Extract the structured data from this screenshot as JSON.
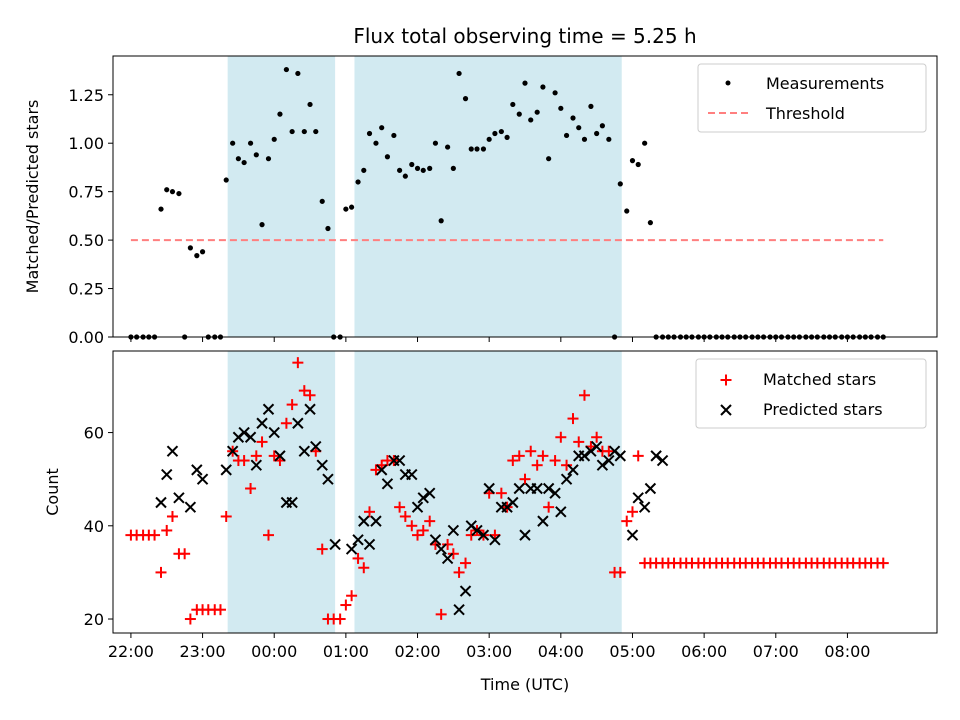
{
  "colors": {
    "shade": "#add8e6",
    "measurement": "#000000",
    "threshold": "#ff7f7f",
    "matched": "#ff0000",
    "predicted": "#000000",
    "axes": "#000000"
  },
  "chart_data": [
    {
      "type": "scatter",
      "title": "Flux total observing time = 5.25 h",
      "xlabel": "",
      "ylabel": "Matched/Predicted stars",
      "xlim": [
        21.75,
        33.25
      ],
      "ylim": [
        0,
        1.45
      ],
      "yticks": [
        0,
        0.25,
        0.5,
        0.75,
        1.0,
        1.25
      ],
      "ytick_labels": [
        "0.00",
        "0.25",
        "0.50",
        "0.75",
        "1.00",
        "1.25"
      ],
      "xticks": [
        22,
        23,
        24,
        25,
        26,
        27,
        28,
        29,
        30,
        31,
        32
      ],
      "xtick_labels_visible": false,
      "shaded_regions": [
        [
          23.35,
          24.85
        ],
        [
          25.12,
          28.85
        ]
      ],
      "legend": {
        "position": "upper right",
        "entries": [
          "Measurements",
          "Threshold"
        ]
      },
      "series": [
        {
          "name": "Threshold",
          "style": "dashed-line",
          "x": [
            22.0,
            32.5
          ],
          "y": [
            0.5,
            0.5
          ]
        },
        {
          "name": "Measurements",
          "style": "dot",
          "x": [
            22.0,
            22.08,
            22.17,
            22.25,
            22.33,
            22.42,
            22.5,
            22.58,
            22.67,
            22.75,
            22.83,
            22.92,
            23.0,
            23.08,
            23.17,
            23.25,
            23.33,
            23.42,
            23.5,
            23.58,
            23.67,
            23.75,
            23.83,
            23.92,
            24.0,
            24.08,
            24.17,
            24.25,
            24.33,
            24.42,
            24.5,
            24.58,
            24.67,
            24.75,
            24.83,
            24.92,
            25.0,
            25.08,
            25.17,
            25.25,
            25.33,
            25.42,
            25.5,
            25.58,
            25.67,
            25.75,
            25.83,
            25.92,
            26.0,
            26.08,
            26.17,
            26.25,
            26.33,
            26.42,
            26.5,
            26.58,
            26.67,
            26.75,
            26.83,
            26.92,
            27.0,
            27.08,
            27.17,
            27.25,
            27.33,
            27.42,
            27.5,
            27.58,
            27.67,
            27.75,
            27.83,
            27.92,
            28.0,
            28.08,
            28.17,
            28.25,
            28.33,
            28.42,
            28.5,
            28.58,
            28.67,
            28.75,
            28.83,
            28.92,
            29.0,
            29.08,
            29.17,
            29.25,
            29.33,
            29.42,
            29.5,
            29.58,
            29.67,
            29.75,
            29.83,
            29.92,
            30.0,
            30.08,
            30.17,
            30.25,
            30.33,
            30.42,
            30.5,
            30.58,
            30.67,
            30.75,
            30.83,
            30.92,
            31.0,
            31.08,
            31.17,
            31.25,
            31.33,
            31.42,
            31.5,
            31.58,
            31.67,
            31.75,
            31.83,
            31.92,
            32.0,
            32.08,
            32.17,
            32.25,
            32.33,
            32.42,
            32.5
          ],
          "y": [
            0.0,
            0.0,
            0.0,
            0.0,
            0.0,
            0.66,
            0.76,
            0.75,
            0.74,
            0.0,
            0.46,
            0.42,
            0.44,
            0.0,
            0.0,
            0.0,
            0.81,
            1.0,
            0.92,
            0.9,
            1.0,
            0.94,
            0.58,
            0.92,
            1.02,
            1.15,
            1.38,
            1.06,
            1.36,
            1.06,
            1.2,
            1.06,
            0.7,
            0.56,
            0.0,
            0.0,
            0.66,
            0.67,
            0.8,
            0.86,
            1.05,
            1.0,
            1.08,
            0.93,
            1.04,
            0.86,
            0.83,
            0.89,
            0.87,
            0.86,
            0.87,
            1.0,
            0.6,
            0.98,
            0.87,
            1.36,
            1.23,
            0.97,
            0.97,
            0.97,
            1.02,
            1.05,
            1.06,
            1.03,
            1.2,
            1.15,
            1.31,
            1.12,
            1.16,
            1.29,
            0.92,
            1.26,
            1.18,
            1.04,
            1.13,
            1.08,
            1.02,
            1.19,
            1.05,
            1.09,
            1.02,
            0.0,
            0.79,
            0.65,
            0.91,
            0.89,
            1.0,
            0.59,
            0.0,
            0.0,
            0.0,
            0.0,
            0.0,
            0.0,
            0.0,
            0.0,
            0.0,
            0.0,
            0.0,
            0.0,
            0.0,
            0.0,
            0.0,
            0.0,
            0.0,
            0.0,
            0.0,
            0.0,
            0.0,
            0.0,
            0.0,
            0.0,
            0.0,
            0.0,
            0.0,
            0.0,
            0.0,
            0.0,
            0.0,
            0.0,
            0.0,
            0.0,
            0.0,
            0.0,
            0.0,
            0.0,
            0.0
          ]
        }
      ]
    },
    {
      "type": "scatter",
      "title": "",
      "xlabel": "Time (UTC)",
      "ylabel": "Count",
      "xlim": [
        21.75,
        33.25
      ],
      "ylim": [
        17,
        77.5
      ],
      "yticks": [
        20,
        40,
        60
      ],
      "ytick_labels": [
        "20",
        "40",
        "60"
      ],
      "xticks": [
        22,
        23,
        24,
        25,
        26,
        27,
        28,
        29,
        30,
        31,
        32
      ],
      "xtick_labels": [
        "22:00",
        "23:00",
        "00:00",
        "01:00",
        "02:00",
        "03:00",
        "04:00",
        "05:00",
        "06:00",
        "07:00",
        "08:00"
      ],
      "shaded_regions": [
        [
          23.35,
          24.85
        ],
        [
          25.12,
          28.85
        ]
      ],
      "legend": {
        "position": "upper right",
        "entries": [
          "Matched stars",
          "Predicted stars"
        ]
      },
      "series": [
        {
          "name": "Matched stars",
          "marker": "plus",
          "x": [
            22.0,
            22.08,
            22.17,
            22.25,
            22.33,
            22.42,
            22.5,
            22.58,
            22.67,
            22.75,
            22.83,
            22.92,
            23.0,
            23.08,
            23.17,
            23.25,
            23.33,
            23.42,
            23.5,
            23.58,
            23.67,
            23.75,
            23.83,
            23.92,
            24.0,
            24.08,
            24.17,
            24.25,
            24.33,
            24.42,
            24.5,
            24.58,
            24.67,
            24.75,
            24.83,
            24.92,
            25.0,
            25.08,
            25.17,
            25.25,
            25.33,
            25.42,
            25.5,
            25.58,
            25.67,
            25.75,
            25.83,
            25.92,
            26.0,
            26.08,
            26.17,
            26.25,
            26.33,
            26.42,
            26.5,
            26.58,
            26.67,
            26.75,
            26.83,
            26.92,
            27.0,
            27.08,
            27.17,
            27.25,
            27.33,
            27.42,
            27.5,
            27.58,
            27.67,
            27.75,
            27.83,
            27.92,
            28.0,
            28.08,
            28.17,
            28.25,
            28.33,
            28.42,
            28.5,
            28.58,
            28.67,
            28.75,
            28.83,
            28.92,
            29.0,
            29.08,
            29.17,
            29.25,
            29.33,
            29.42,
            29.5,
            29.58,
            29.67,
            29.75,
            29.83,
            29.92,
            30.0,
            30.08,
            30.17,
            30.25,
            30.33,
            30.42,
            30.5,
            30.58,
            30.67,
            30.75,
            30.83,
            30.92,
            31.0,
            31.08,
            31.17,
            31.25,
            31.33,
            31.42,
            31.5,
            31.58,
            31.67,
            31.75,
            31.83,
            31.92,
            32.0,
            32.08,
            32.17,
            32.25,
            32.33,
            32.42,
            32.5
          ],
          "y": [
            38,
            38,
            38,
            38,
            38,
            30,
            39,
            42,
            34,
            34,
            20,
            22,
            22,
            22,
            22,
            22,
            42,
            56,
            54,
            54,
            48,
            55,
            58,
            38,
            55,
            54,
            62,
            66,
            75,
            69,
            68,
            56,
            35,
            20,
            20,
            20,
            23,
            25,
            33,
            31,
            43,
            52,
            53,
            54,
            54,
            44,
            42,
            40,
            38,
            39,
            41,
            36,
            21,
            36,
            34,
            30,
            32,
            38,
            39,
            38,
            47,
            38,
            47,
            44,
            54,
            55,
            50,
            56,
            53,
            55,
            44,
            54,
            59,
            53,
            63,
            58,
            68,
            57,
            59,
            56,
            56,
            30,
            30,
            41,
            43,
            55,
            32,
            32,
            32,
            32,
            32,
            32,
            32,
            32,
            32,
            32,
            32,
            32,
            32,
            32,
            32,
            32,
            32,
            32,
            32,
            32,
            32,
            32,
            32,
            32,
            32,
            32,
            32,
            32,
            32,
            32,
            32,
            32,
            32,
            32,
            32,
            32,
            32,
            32,
            32,
            32,
            32
          ]
        },
        {
          "name": "Predicted stars",
          "marker": "x",
          "x": [
            22.42,
            22.5,
            22.58,
            22.67,
            22.83,
            22.92,
            23.0,
            23.33,
            23.42,
            23.5,
            23.58,
            23.67,
            23.75,
            23.83,
            23.92,
            24.0,
            24.08,
            24.17,
            24.25,
            24.33,
            24.42,
            24.5,
            24.58,
            24.67,
            24.75,
            24.85,
            25.08,
            25.17,
            25.25,
            25.33,
            25.42,
            25.5,
            25.58,
            25.67,
            25.75,
            25.83,
            25.92,
            26.0,
            26.08,
            26.17,
            26.25,
            26.33,
            26.42,
            26.5,
            26.58,
            26.67,
            26.75,
            26.83,
            26.92,
            27.0,
            27.08,
            27.17,
            27.25,
            27.33,
            27.42,
            27.5,
            27.58,
            27.67,
            27.75,
            27.83,
            27.92,
            28.0,
            28.08,
            28.17,
            28.25,
            28.33,
            28.42,
            28.5,
            28.58,
            28.67,
            28.75,
            28.83,
            29.0,
            29.08,
            29.17,
            29.25,
            29.33,
            29.42
          ],
          "y": [
            45,
            51,
            56,
            46,
            44,
            52,
            50,
            52,
            56,
            59,
            60,
            59,
            53,
            62,
            65,
            60,
            55,
            45,
            45,
            62,
            56,
            65,
            57,
            53,
            50,
            36,
            35,
            37,
            41,
            36,
            41,
            52,
            49,
            54,
            54,
            51,
            51,
            44,
            46,
            47,
            37,
            35,
            33,
            39,
            22,
            26,
            40,
            39,
            38,
            48,
            37,
            44,
            44,
            45,
            48,
            38,
            48,
            48,
            41,
            48,
            47,
            43,
            50,
            52,
            55,
            55,
            56,
            57,
            53,
            54,
            56,
            55,
            38,
            46,
            44,
            48,
            55,
            54
          ]
        }
      ]
    }
  ]
}
